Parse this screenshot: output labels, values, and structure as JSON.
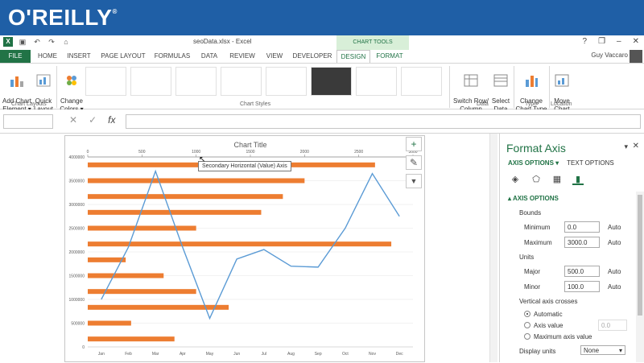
{
  "brand": {
    "logo": "O'REILLY",
    "reg": "®"
  },
  "window": {
    "title": "seoData.xlsx - Excel",
    "chart_tools": "CHART TOOLS",
    "user": "Guy Vaccaro",
    "help": "?",
    "minimize": "–",
    "restore": "❐",
    "close": "✕"
  },
  "tabs": [
    {
      "label": "FILE"
    },
    {
      "label": "HOME"
    },
    {
      "label": "INSERT"
    },
    {
      "label": "PAGE LAYOUT"
    },
    {
      "label": "FORMULAS"
    },
    {
      "label": "DATA"
    },
    {
      "label": "REVIEW"
    },
    {
      "label": "VIEW"
    },
    {
      "label": "DEVELOPER"
    },
    {
      "label": "DESIGN"
    },
    {
      "label": "FORMAT"
    }
  ],
  "ribbon": {
    "add_chart_element": "Add Chart\nElement ▾",
    "quick_layout": "Quick\nLayout ▾",
    "change_colors": "Change\nColors ▾",
    "switch_row_col": "Switch Row/\nColumn",
    "select_data": "Select\nData",
    "change_chart_type": "Change\nChart Type",
    "move_chart": "Move\nChart",
    "group_chart_layouts": "Chart Layouts",
    "group_chart_styles": "Chart Styles",
    "group_data": "Data",
    "group_type": "Type",
    "group_location": "Location"
  },
  "formula_bar": {
    "fx": "fx",
    "cancel": "✕",
    "enter": "✓"
  },
  "tooltip": "Secondary Horizontal (Value) Axis",
  "chart_data": {
    "type": "bar",
    "title": "Chart Title",
    "months": [
      "Jan",
      "Feb",
      "Mar",
      "Apr",
      "May",
      "Jun",
      "Jul",
      "Aug",
      "Sep",
      "Oct",
      "Nov",
      "Dec"
    ],
    "line_values": [
      1000000,
      2100000,
      3700000,
      2100000,
      600000,
      1850000,
      2050000,
      1700000,
      1680000,
      2500000,
      3650000,
      2750000
    ],
    "bar_values": [
      800,
      400,
      1300,
      1000,
      700,
      350,
      2800,
      1000,
      1600,
      1800,
      2000,
      2650
    ],
    "y_ticks": [
      0,
      500000,
      1000000,
      1500000,
      2000000,
      2500000,
      3000000,
      3500000,
      4000000
    ],
    "y_tick_labels": [
      "0",
      "500000",
      "1000000",
      "1500000",
      "2000000",
      "2500000",
      "3000000",
      "3500000",
      "4000000"
    ],
    "top_ticks": [
      0,
      500,
      1000,
      1500,
      2000,
      2500,
      3000
    ],
    "top_tick_labels": [
      "0",
      "500",
      "1000",
      "1500",
      "2000",
      "2500",
      "3000"
    ],
    "ylim": [
      0,
      4000000
    ],
    "xlim_top": [
      0,
      3000
    ],
    "colors": {
      "bar": "#ed7d31",
      "line": "#5b9bd5"
    }
  },
  "side_tools": {
    "add": "+",
    "style": "✎",
    "filter": "▼"
  },
  "pane": {
    "title": "Format Axis",
    "close": "✕",
    "dropdown": "▾",
    "tab_axis": "AXIS OPTIONS ▾",
    "tab_text": "TEXT OPTIONS",
    "section": "AXIS OPTIONS",
    "bounds": "Bounds",
    "minimum": "Minimum",
    "minimum_value": "0.0",
    "maximum": "Maximum",
    "maximum_value": "3000.0",
    "auto": "Auto",
    "units": "Units",
    "major": "Major",
    "major_value": "500.0",
    "minor": "Minor",
    "minor_value": "100.0",
    "vertical_crosses": "Vertical axis crosses",
    "automatic": "Automatic",
    "axis_value": "Axis value",
    "axis_value_value": "0.0",
    "max_axis_value": "Maximum axis value",
    "display_units": "Display units",
    "display_units_value": "None"
  }
}
